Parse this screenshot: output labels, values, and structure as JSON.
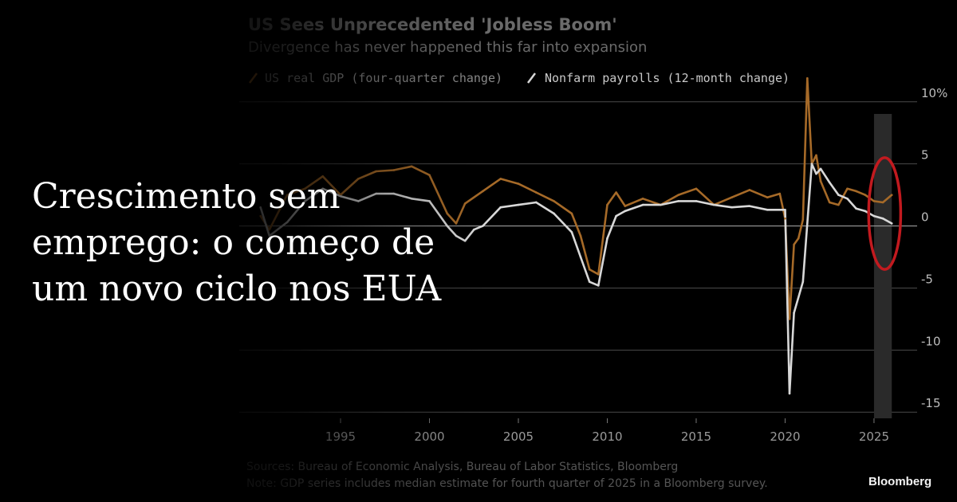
{
  "headline": {
    "lines": [
      "Crescimento sem",
      "emprego: o começo de",
      "um novo ciclo nos EUA"
    ]
  },
  "brand": "Bloomberg",
  "colors": {
    "background": "#000000",
    "gdp": "#a66a28",
    "payrolls": "#d8d8d8",
    "shade": "#2a2a2a",
    "highlight_circle": "#c21a1f"
  },
  "chart_data": {
    "type": "line",
    "title": "US Sees Unprecedented 'Jobless Boom'",
    "subtitle": "Divergence has never happened this far into expansion",
    "legend": [
      "US real GDP (four-quarter change)",
      "Nonfarm payrolls (12-month change)"
    ],
    "legend_placement": "top-left",
    "source": "Sources: Bureau of Economic Analysis, Bureau of Labor Statistics, Bloomberg",
    "note": "Note: GDP series includes median estimate for fourth quarter of 2025 in a Bloomberg survey.",
    "xticks": [
      "1995",
      "2000",
      "2005",
      "2010",
      "2015",
      "2020",
      "2025"
    ],
    "yticks": [
      "10%",
      "5",
      "0",
      "-5",
      "-10",
      "-15"
    ],
    "ytick_values": [
      10,
      5,
      0,
      -5,
      -10,
      -15
    ],
    "ylim": [
      -15.5,
      10.5
    ],
    "xlim": [
      1990.2,
      2027.2
    ],
    "grid": "horizontal",
    "shaded_region": [
      2025.0,
      2026.0
    ],
    "highlight_ellipse": {
      "center": [
        2025.6,
        1.0
      ],
      "radii": [
        0.9,
        4.5
      ]
    },
    "series": [
      {
        "name": "US real GDP (four-quarter change)",
        "x": [
          1990.5,
          1991,
          1992,
          1993,
          1994,
          1995,
          1996,
          1997,
          1998,
          1999,
          2000,
          2001,
          2001.5,
          2002,
          2003,
          2004,
          2005,
          2006,
          2007,
          2008,
          2008.5,
          2009,
          2009.5,
          2010,
          2010.5,
          2011,
          2012,
          2013,
          2014,
          2015,
          2016,
          2017,
          2018,
          2019,
          2019.7,
          2020,
          2020.25,
          2020.5,
          2020.75,
          2021,
          2021.25,
          2021.5,
          2021.75,
          2022,
          2022.5,
          2023,
          2023.5,
          2024,
          2024.5,
          2025,
          2025.5,
          2026
        ],
        "values": [
          0.8,
          -0.3,
          2.5,
          3.0,
          4.0,
          2.5,
          3.8,
          4.4,
          4.5,
          4.8,
          4.1,
          1.0,
          0.2,
          1.8,
          2.8,
          3.8,
          3.4,
          2.7,
          2.0,
          1.0,
          -0.8,
          -3.5,
          -3.9,
          1.7,
          2.7,
          1.6,
          2.2,
          1.7,
          2.5,
          3.0,
          1.7,
          2.3,
          2.9,
          2.3,
          2.6,
          0.6,
          -7.5,
          -1.5,
          -1.0,
          0.5,
          11.9,
          5.0,
          5.7,
          3.6,
          1.9,
          1.7,
          3.0,
          2.8,
          2.5,
          2.0,
          1.9,
          2.5
        ]
      },
      {
        "name": "Nonfarm payrolls (12-month change)",
        "x": [
          1990.5,
          1991,
          1992,
          1993,
          1994,
          1995,
          1996,
          1997,
          1998,
          1999,
          2000,
          2001,
          2001.5,
          2002,
          2002.5,
          2003,
          2004,
          2005,
          2006,
          2007,
          2008,
          2008.5,
          2009,
          2009.5,
          2010,
          2010.5,
          2011,
          2012,
          2013,
          2014,
          2015,
          2016,
          2017,
          2018,
          2019,
          2020,
          2020.25,
          2020.5,
          2021,
          2021.5,
          2021.75,
          2022,
          2022.5,
          2023,
          2023.5,
          2024,
          2024.5,
          2025,
          2025.5,
          2026
        ],
        "values": [
          1.5,
          -0.8,
          0.3,
          2.0,
          3.0,
          2.4,
          2.0,
          2.6,
          2.6,
          2.2,
          2.0,
          0.0,
          -0.8,
          -1.2,
          -0.3,
          0.0,
          1.5,
          1.7,
          1.9,
          1.0,
          -0.5,
          -2.5,
          -4.5,
          -4.8,
          -1.0,
          0.8,
          1.2,
          1.7,
          1.7,
          2.0,
          2.0,
          1.7,
          1.5,
          1.6,
          1.3,
          1.3,
          -13.5,
          -7.0,
          -4.5,
          5.0,
          4.2,
          4.6,
          3.5,
          2.5,
          2.2,
          1.4,
          1.2,
          0.8,
          0.6,
          0.2
        ]
      }
    ]
  }
}
